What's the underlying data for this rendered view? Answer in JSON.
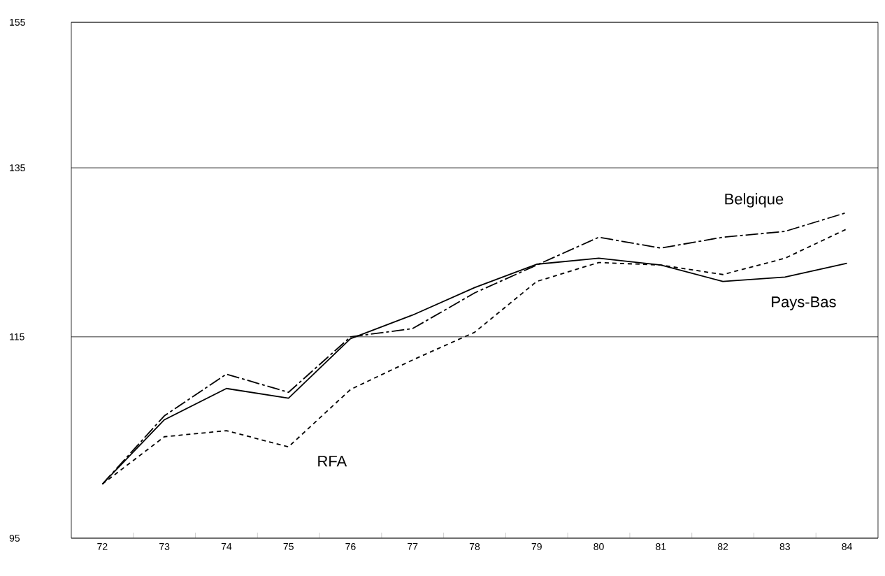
{
  "chart_data": {
    "type": "line",
    "x": [
      72,
      73,
      74,
      75,
      76,
      77,
      78,
      79,
      80,
      81,
      82,
      83,
      84
    ],
    "series": [
      {
        "name": "Belgique",
        "color": "#000000",
        "line_style": "dashed",
        "values": [
          100,
          106.7,
          111.0,
          109.1,
          115.0,
          115.9,
          119.9,
          123.1,
          126.4,
          125.1,
          126.4,
          127.1,
          129.4
        ]
      },
      {
        "name": "Pays-Bas",
        "color": "#000000",
        "line_style": "solid",
        "values": [
          100,
          106.3,
          109.5,
          108.5,
          114.8,
          117.4,
          120.5,
          123.2,
          123.9,
          123.1,
          121.2,
          121.7,
          123.3
        ]
      },
      {
        "name": "RFA",
        "color": "#000000",
        "line_style": "dotted",
        "values": [
          100,
          104.6,
          105.2,
          103.6,
          109.4,
          112.5,
          115.5,
          121.2,
          123.4,
          123.1,
          122.0,
          123.9,
          127.4
        ]
      }
    ],
    "log": "y",
    "xlim": [
      71.5,
      84.5
    ],
    "ylim": [
      95,
      155
    ],
    "xticks": [
      72,
      73,
      74,
      75,
      76,
      77,
      78,
      79,
      80,
      81,
      82,
      83,
      84
    ],
    "yticks": [
      95,
      115,
      135,
      155
    ],
    "grid": "y",
    "legend": false,
    "marker": "none"
  }
}
